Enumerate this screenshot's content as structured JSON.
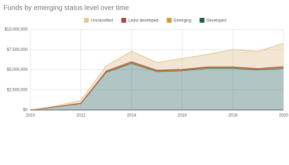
{
  "chart_data": {
    "type": "stacked-area",
    "title": "Funds by emerging status level over time",
    "x": [
      2010,
      2011,
      2012,
      2013,
      2014,
      2015,
      2016,
      2017,
      2018,
      2019,
      2020
    ],
    "series": [
      {
        "name": "Unclassified",
        "color": "#e3c79b",
        "values": [
          0,
          100000,
          350000,
          650000,
          1300000,
          950000,
          1350000,
          1550000,
          2150000,
          2150000,
          2900000
        ]
      },
      {
        "name": "Least developed",
        "color": "#a3444d",
        "values": [
          0,
          0,
          50000,
          100000,
          150000,
          100000,
          100000,
          100000,
          100000,
          100000,
          150000
        ]
      },
      {
        "name": "Emerging",
        "color": "#d19a2a",
        "values": [
          0,
          0,
          0,
          50000,
          50000,
          50000,
          50000,
          50000,
          50000,
          50000,
          50000
        ]
      },
      {
        "name": "Developed",
        "color": "#1f5c55",
        "values": [
          0,
          400000,
          800000,
          4700000,
          5800000,
          4800000,
          4900000,
          5200000,
          5200000,
          5000000,
          5200000
        ]
      }
    ],
    "xlim": [
      2010,
      2020
    ],
    "xticks": [
      2010,
      2012,
      2014,
      2016,
      2018,
      2020
    ],
    "ylim": [
      0,
      10000000
    ],
    "yticks": [
      {
        "value": 0,
        "label": "$0"
      },
      {
        "value": 2500000,
        "label": "$2,500,000"
      },
      {
        "value": 5000000,
        "label": "$5,000,000"
      },
      {
        "value": 7500000,
        "label": "$7,500,000"
      },
      {
        "value": 10000000,
        "label": "$10,000,000"
      }
    ],
    "grid": true,
    "legend": "top"
  }
}
